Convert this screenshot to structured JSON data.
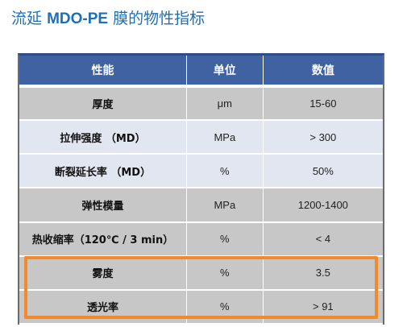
{
  "title": {
    "part1": "流延",
    "part2": "MDO-PE",
    "part3": "膜的物性指标"
  },
  "table": {
    "headers": [
      "性能",
      "单位",
      "数值"
    ],
    "rows": [
      {
        "property": "厚度",
        "unit": "μm",
        "value": "15-60"
      },
      {
        "property": "拉伸强度 （MD）",
        "unit": "MPa",
        "value": "> 300"
      },
      {
        "property": "断裂延长率 （MD）",
        "unit": "%",
        "value": "50%"
      },
      {
        "property": "弹性模量",
        "unit": "MPa",
        "value": "1200-1400"
      },
      {
        "property": "热收缩率（120℃ / 3 min）",
        "unit": "%",
        "value": "< 4"
      },
      {
        "property": "雾度",
        "unit": "%",
        "value": "3.5"
      },
      {
        "property": "透光率",
        "unit": "%",
        "value": "> 91"
      }
    ]
  },
  "colors": {
    "title": "#1f6fb5",
    "header_bg": "#3f62a3",
    "row_dark": "#c7c7c7",
    "row_light": "#e2e6f1",
    "highlight_border": "#f08a2c"
  }
}
